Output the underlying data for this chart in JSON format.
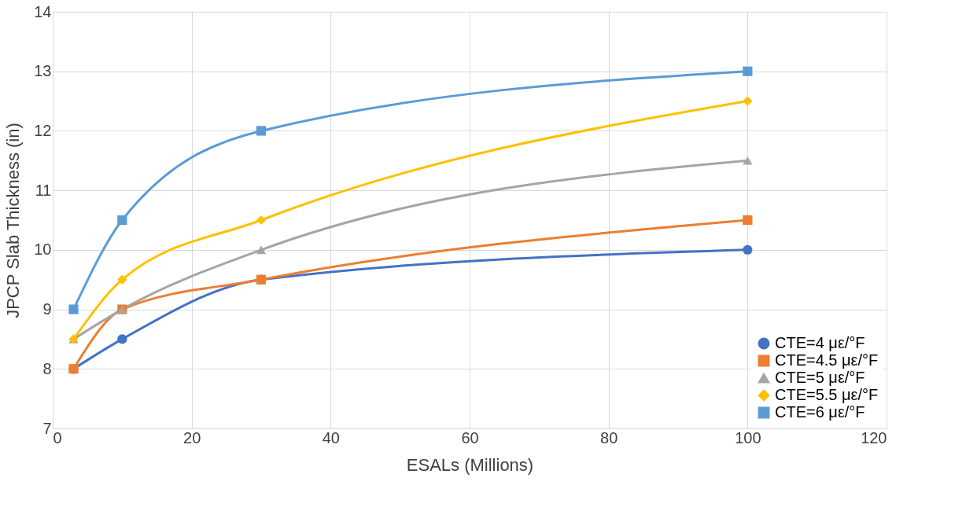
{
  "chart_data": {
    "type": "line",
    "xlabel": "ESALs (Millions)",
    "ylabel": "JPCP Slab Thickness (in)",
    "x": [
      3,
      10,
      30,
      100
    ],
    "series": [
      {
        "name": "CTE=4 με/°F",
        "color": "#4472c4",
        "marker": "circle",
        "values": [
          8,
          8.5,
          9.5,
          10
        ]
      },
      {
        "name": "CTE=4.5 με/°F",
        "color": "#ed7d31",
        "marker": "square",
        "values": [
          8,
          9,
          9.5,
          10.5
        ]
      },
      {
        "name": "CTE=5 με/°F",
        "color": "#a5a5a5",
        "marker": "triangle",
        "values": [
          8.5,
          9,
          10,
          11.5
        ]
      },
      {
        "name": "CTE=5.5 με/°F",
        "color": "#ffc000",
        "marker": "diamond",
        "values": [
          8.5,
          9.5,
          10.5,
          12.5
        ]
      },
      {
        "name": "CTE=6 με/°F",
        "color": "#5b9bd5",
        "marker": "square",
        "values": [
          9,
          10.5,
          12,
          13
        ]
      }
    ],
    "xlim": [
      0,
      120
    ],
    "xticks": [
      0,
      20,
      40,
      60,
      80,
      100,
      120
    ],
    "ylim": [
      7,
      14
    ],
    "yticks": [
      7,
      8,
      9,
      10,
      11,
      12,
      13,
      14
    ],
    "grid": true,
    "legend": "bottom right",
    "line_style": "solid"
  }
}
